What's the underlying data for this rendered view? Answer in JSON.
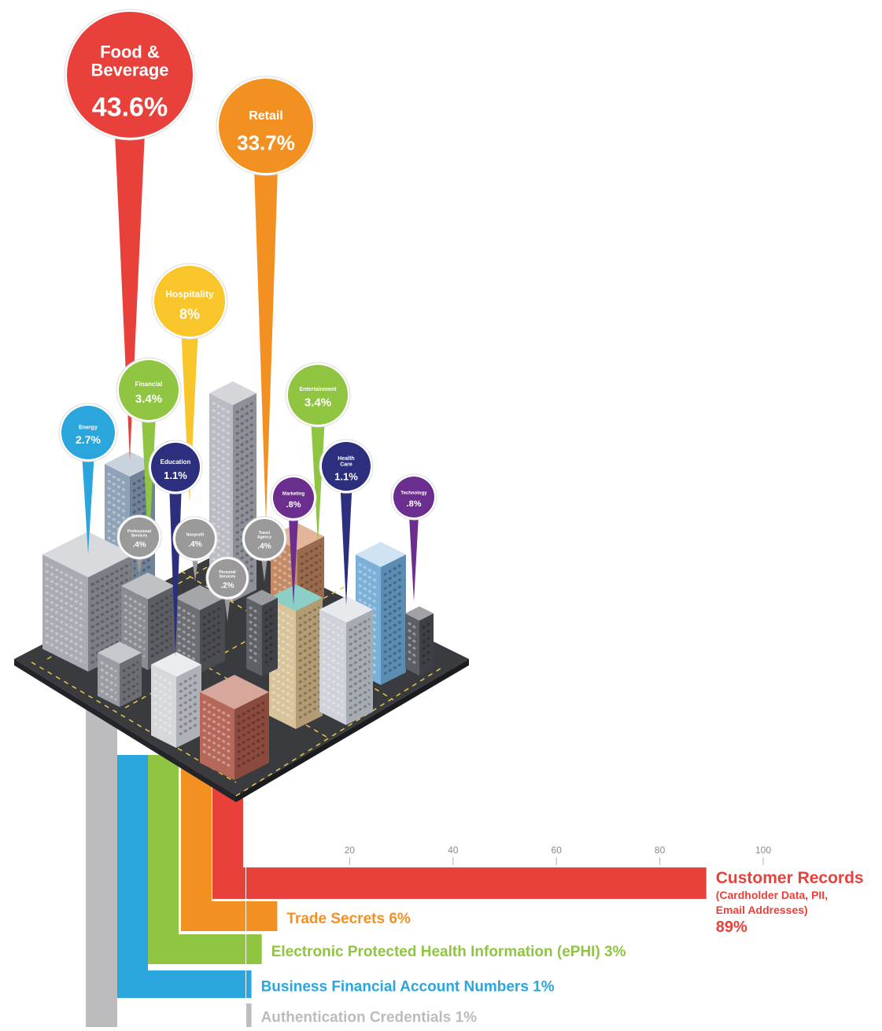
{
  "chart_data": [
    {
      "type": "pie",
      "title": "",
      "categories": [
        "Food & Beverage",
        "Retail",
        "Hospitality",
        "Financial",
        "Entertainment",
        "Energy",
        "Education",
        "Health Care",
        "Marketing",
        "Technology",
        "Professional Services",
        "Nonprofit",
        "Travel Agency",
        "Personal Services"
      ],
      "values": [
        43.6,
        33.7,
        8,
        3.4,
        3.4,
        2.7,
        1.1,
        1.1,
        0.8,
        0.8,
        0.4,
        0.4,
        0.4,
        0.2
      ],
      "display_labels": [
        "43.6%",
        "33.7%",
        "8%",
        "3.4%",
        "3.4%",
        "2.7%",
        "1.1%",
        "1.1%",
        ".8%",
        ".8%",
        ".4%",
        ".4%",
        ".4%",
        ".2%"
      ],
      "colors": [
        "#e8403a",
        "#f29122",
        "#f8c52a",
        "#8fc540",
        "#8fc540",
        "#2aa6dc",
        "#2b2f7e",
        "#2b2f7e",
        "#6b2e8e",
        "#6b2e8e",
        "#9a9a9a",
        "#9a9a9a",
        "#9a9a9a",
        "#9a9a9a"
      ]
    },
    {
      "type": "bar",
      "title": "",
      "xlabel": "",
      "ylabel": "",
      "xlim": [
        0,
        100
      ],
      "xticks": [
        20,
        40,
        60,
        80,
        100
      ],
      "categories": [
        "Customer Records",
        "Trade Secrets",
        "Electronic Protected Health Information (ePHI)",
        "Business Financial Account Numbers",
        "Authentication Credentials"
      ],
      "subtitles": [
        "(Cardholder Data, PII,",
        "Email Addresses)"
      ],
      "values": [
        89,
        6,
        3,
        1,
        1
      ],
      "display_labels": [
        "89%",
        "6%",
        "3%",
        "1%",
        "1%"
      ],
      "colors": [
        "#e8403a",
        "#f29122",
        "#8fc540",
        "#2aa6dc",
        "#bcbcbe"
      ]
    }
  ]
}
